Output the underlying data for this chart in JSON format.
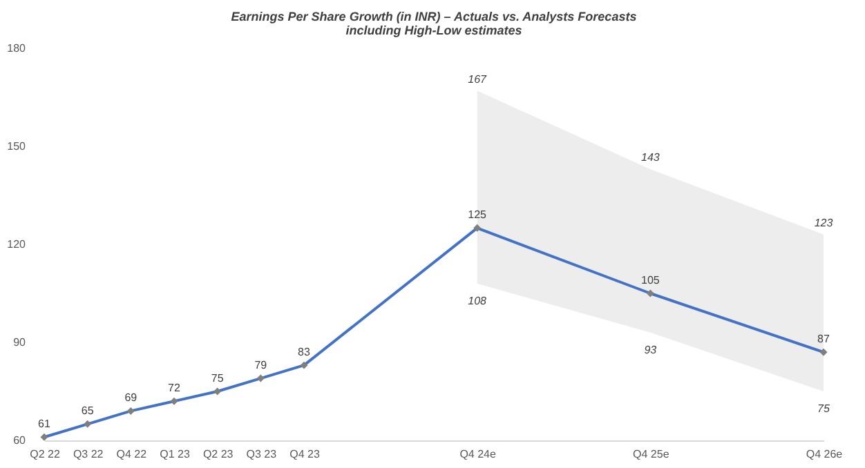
{
  "chart_data": {
    "type": "line",
    "title": "Earnings Per Share Growth (in INR) – Actuals vs. Analysts Forecasts",
    "subtitle": "including High-Low estimates",
    "categories": [
      "Q2 22",
      "Q3 22",
      "Q4 22",
      "Q1 23",
      "Q2 23",
      "Q3 23",
      "Q4 23",
      null,
      null,
      null,
      "Q4 24e",
      null,
      null,
      null,
      "Q4 25e",
      null,
      null,
      null,
      "Q4 26e"
    ],
    "series": [
      {
        "color": "#4472c4",
        "values": [
          61,
          65,
          69,
          72,
          75,
          79,
          83,
          null,
          null,
          null,
          125,
          null,
          null,
          null,
          105,
          null,
          null,
          null,
          87
        ],
        "lower": [
          null,
          null,
          null,
          null,
          null,
          null,
          null,
          null,
          null,
          null,
          108,
          null,
          null,
          null,
          93,
          null,
          null,
          null,
          75
        ],
        "upper": [
          null,
          null,
          null,
          null,
          null,
          null,
          null,
          null,
          null,
          null,
          167,
          null,
          null,
          null,
          143,
          null,
          null,
          null,
          123
        ]
      }
    ],
    "annotations": [
      {
        "text": "167",
        "x": "Q4 24e",
        "y": 167
      },
      {
        "text": "108",
        "x": "Q4 24e",
        "y": 108
      },
      {
        "text": "143",
        "x": "Q4 25e",
        "y": 143
      },
      {
        "text": "93",
        "x": "Q4 25e",
        "y": 93
      },
      {
        "text": "123",
        "x": "Q4 26e",
        "y": 123
      },
      {
        "text": "75",
        "x": "Q4 26e",
        "y": 75
      }
    ],
    "ylim": [
      60,
      180
    ],
    "yticks": [
      60,
      90,
      120,
      150,
      180
    ],
    "grid": false,
    "marker": "diamond",
    "line_style": "solid",
    "data_labels": true
  }
}
